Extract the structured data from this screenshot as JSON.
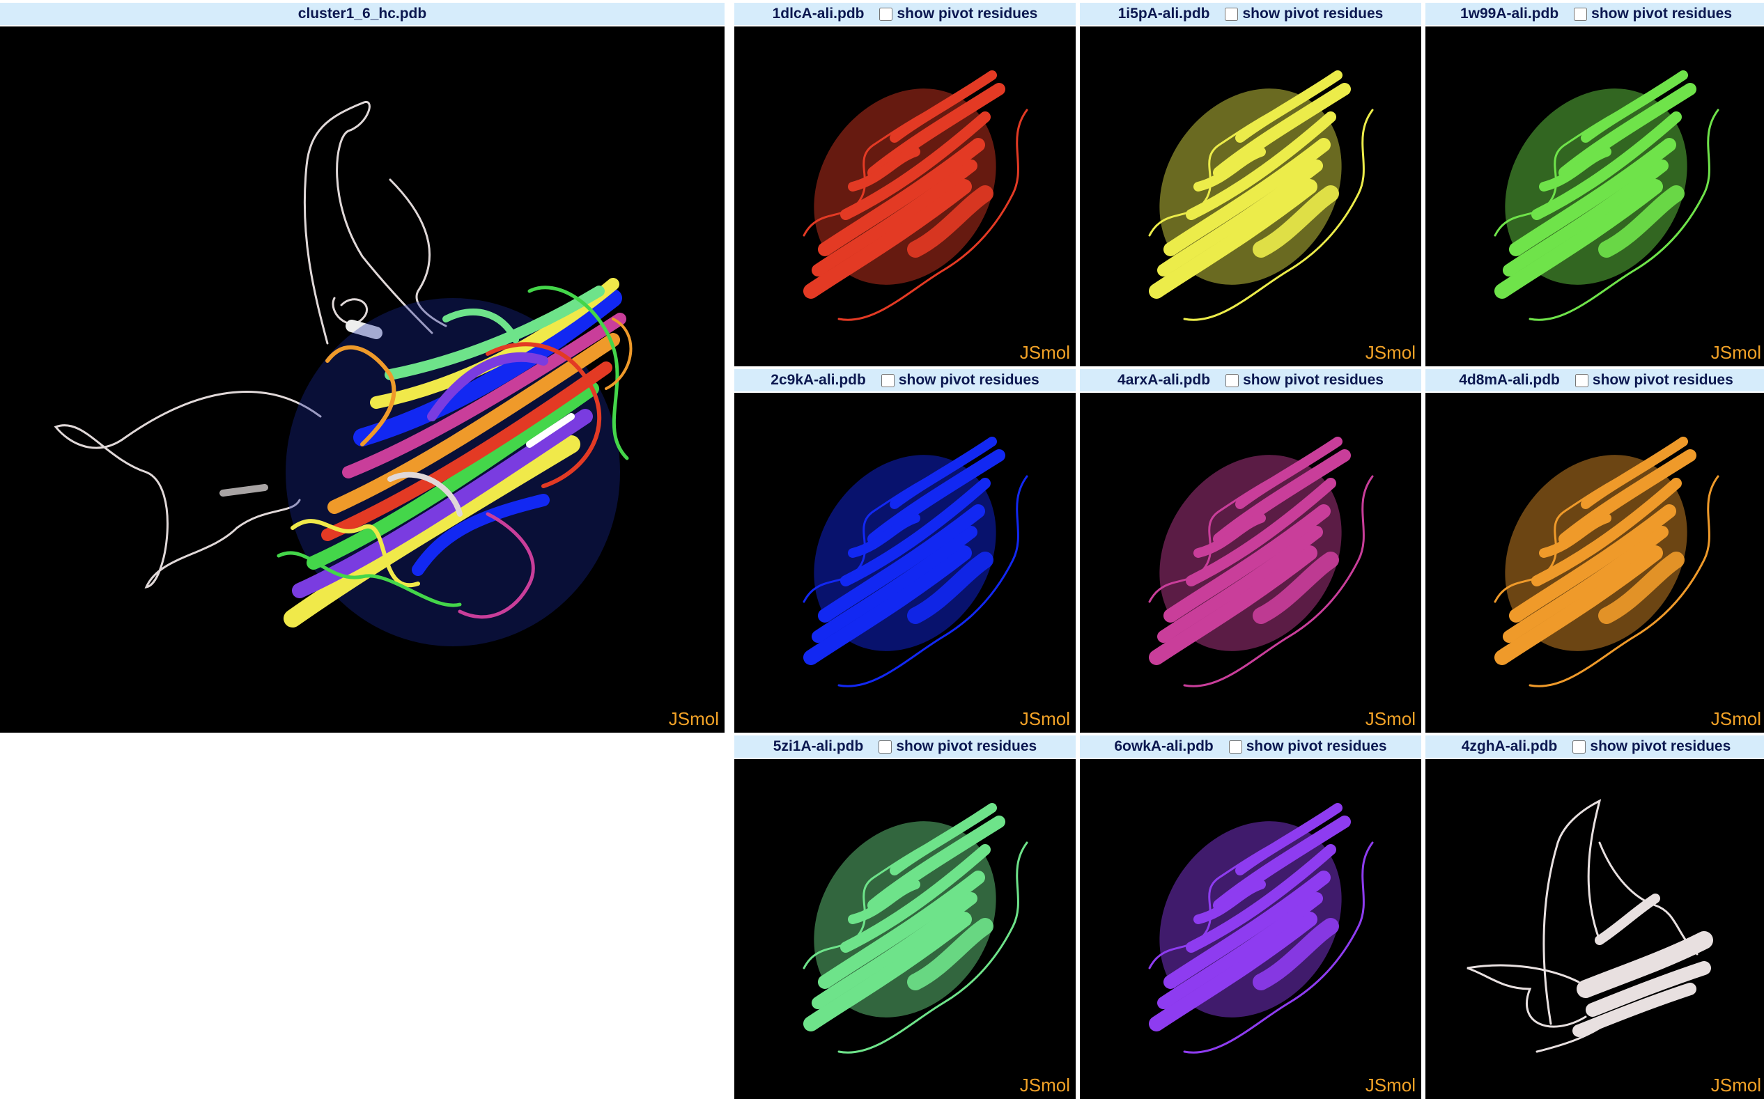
{
  "main_viewer": {
    "title": "cluster1_6_hc.pdb",
    "brand": "JSmol"
  },
  "pivot_label": "show pivot residues",
  "viewers": [
    {
      "title": "1dlcA-ali.pdb",
      "color": "#e33a24",
      "brand": "JSmol"
    },
    {
      "title": "1i5pA-ali.pdb",
      "color": "#ecec4a",
      "brand": "JSmol"
    },
    {
      "title": "1w99A-ali.pdb",
      "color": "#6fe34a",
      "brand": "JSmol"
    },
    {
      "title": "2c9kA-ali.pdb",
      "color": "#1228f2",
      "brand": "JSmol"
    },
    {
      "title": "4arxA-ali.pdb",
      "color": "#c93e9a",
      "brand": "JSmol"
    },
    {
      "title": "4d8mA-ali.pdb",
      "color": "#ef9a2a",
      "brand": "JSmol"
    },
    {
      "title": "5zi1A-ali.pdb",
      "color": "#6ee38a",
      "brand": "JSmol"
    },
    {
      "title": "6owkA-ali.pdb",
      "color": "#8e3cf0",
      "brand": "JSmol"
    },
    {
      "title": "4zghA-ali.pdb",
      "color": "#e8e0e0",
      "brand": "JSmol"
    }
  ]
}
